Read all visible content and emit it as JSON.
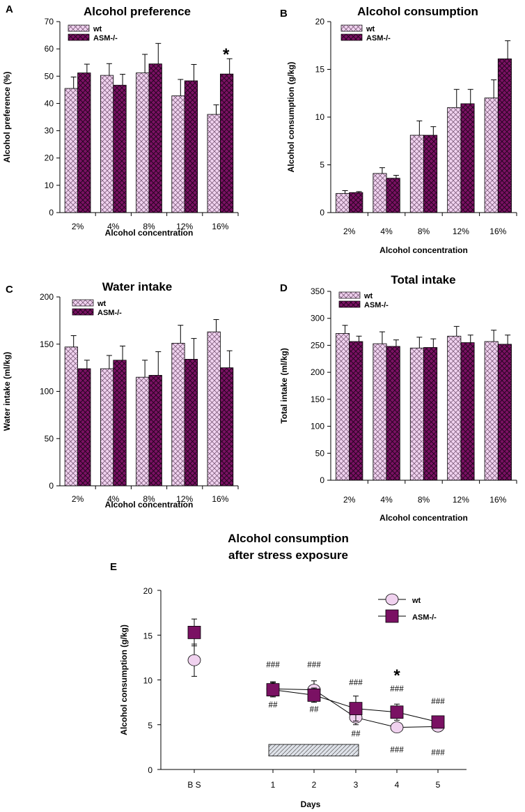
{
  "colors": {
    "wt": "#f0d2ef",
    "asm": "#7a1163",
    "hatch": "#000000"
  },
  "chart_data": [
    {
      "panel": "A",
      "type": "bar",
      "title": "Alcohol preference",
      "xlabel": "Alcohol concentration",
      "ylabel": "Alcohol preference (%)",
      "ylim": [
        0,
        70
      ],
      "ticks": [
        "0",
        "10",
        "20",
        "30",
        "40",
        "50",
        "60",
        "70"
      ],
      "categories": [
        "2%",
        "4%",
        "8%",
        "12%",
        "16%"
      ],
      "legend": [
        "wt",
        "ASM-/-"
      ],
      "series": [
        {
          "name": "wt",
          "values": [
            45.5,
            50.3,
            51.2,
            42.8,
            36
          ],
          "err": [
            4.2,
            4.3,
            6.8,
            6,
            3.5
          ]
        },
        {
          "name": "ASM-/-",
          "values": [
            51.2,
            46.7,
            54.5,
            48.3,
            50.8
          ],
          "err": [
            3.2,
            4,
            7.5,
            6,
            5.6
          ]
        }
      ],
      "annotations": [
        {
          "text": "*",
          "category": 4,
          "value": 59.5
        }
      ]
    },
    {
      "panel": "B",
      "type": "bar",
      "title": "Alcohol consumption",
      "xlabel": "Alcohol concentration",
      "ylabel": "Alcohol consumption (g/kg)",
      "ylim": [
        0,
        20
      ],
      "ticks": [
        "0",
        "5",
        "10",
        "15",
        "20"
      ],
      "categories": [
        "2%",
        "4%",
        "8%",
        "12%",
        "16%"
      ],
      "legend": [
        "wt",
        "ASM-/-"
      ],
      "series": [
        {
          "name": "wt",
          "values": [
            2,
            4.1,
            8.1,
            11,
            12
          ],
          "err": [
            0.3,
            0.6,
            1.5,
            1.9,
            1.9
          ]
        },
        {
          "name": "ASM-/-",
          "values": [
            2.1,
            3.6,
            8.1,
            11.4,
            16.1
          ],
          "err": [
            0.1,
            0.3,
            0.9,
            1.5,
            1.9
          ]
        }
      ],
      "annotations": []
    },
    {
      "panel": "C",
      "type": "bar",
      "title": "Water intake",
      "xlabel": "Alcohol concentration",
      "ylabel": "Water intake (ml/kg)",
      "ylim": [
        0,
        200
      ],
      "ticks": [
        "0",
        "50",
        "100",
        "150",
        "200"
      ],
      "categories": [
        "2%",
        "4%",
        "8%",
        "12%",
        "16%"
      ],
      "legend": [
        "wt",
        "ASM-/-"
      ],
      "series": [
        {
          "name": "wt",
          "values": [
            147,
            124,
            115,
            151,
            163
          ],
          "err": [
            12,
            14,
            18,
            19,
            13
          ]
        },
        {
          "name": "ASM-/-",
          "values": [
            124,
            133,
            117,
            134,
            125
          ],
          "err": [
            9,
            15,
            25,
            22,
            18
          ]
        }
      ],
      "annotations": []
    },
    {
      "panel": "D",
      "type": "bar",
      "title": "Total intake",
      "xlabel": "Alcohol concentration",
      "ylabel": "Total intake (ml/kg)",
      "ylim": [
        0,
        350
      ],
      "ticks": [
        "0",
        "50",
        "100",
        "150",
        "200",
        "250",
        "300",
        "350"
      ],
      "categories": [
        "2%",
        "4%",
        "8%",
        "12%",
        "16%"
      ],
      "legend": [
        "wt",
        "ASM-/-"
      ],
      "series": [
        {
          "name": "wt",
          "values": [
            272,
            253,
            245,
            267,
            257
          ],
          "err": [
            15,
            22,
            20,
            18,
            21
          ]
        },
        {
          "name": "ASM-/-",
          "values": [
            257,
            248,
            246,
            255,
            252
          ],
          "err": [
            10,
            12,
            16,
            14,
            17
          ]
        }
      ],
      "annotations": []
    },
    {
      "panel": "E",
      "type": "line",
      "title_lines": [
        "Alcohol consumption",
        "after stress exposure"
      ],
      "xlabel": "Days",
      "ylabel": "Alcohol consumption (g/kg)",
      "ylim": [
        0,
        20
      ],
      "ticks": [
        "0",
        "5",
        "10",
        "15",
        "20"
      ],
      "x_categories": [
        "B S",
        "1",
        "2",
        "3",
        "4",
        "5"
      ],
      "legend": [
        "wt",
        "ASM-/-"
      ],
      "series": [
        {
          "name": "wt",
          "values": [
            12.2,
            9,
            8.9,
            5.8,
            4.7,
            4.8
          ],
          "err": [
            1.8,
            0.8,
            1,
            0.8,
            0.4,
            0.4
          ]
        },
        {
          "name": "ASM-/-",
          "values": [
            15.3,
            8.9,
            8.3,
            6.8,
            6.4,
            5.3
          ],
          "err": [
            1.5,
            0.8,
            0.8,
            1.4,
            0.9,
            0.6
          ]
        }
      ],
      "connect_from_index": 1,
      "stress_bar": {
        "from_day": "1",
        "to_day": "3"
      },
      "annotations": [
        {
          "text": "###",
          "x": 1,
          "value": 11.8
        },
        {
          "text": "##",
          "x": 1,
          "value": 7.3
        },
        {
          "text": "###",
          "x": 2,
          "value": 11.8
        },
        {
          "text": "##",
          "x": 2,
          "value": 6.8
        },
        {
          "text": "###",
          "x": 3,
          "value": 9.8
        },
        {
          "text": "##",
          "x": 3,
          "value": 4.1
        },
        {
          "text": "*",
          "x": 4,
          "value": 10.8,
          "big": true
        },
        {
          "text": "###",
          "x": 4,
          "value": 9.1
        },
        {
          "text": "###",
          "x": 4,
          "value": 2.3
        },
        {
          "text": "###",
          "x": 5,
          "value": 7.7
        },
        {
          "text": "###",
          "x": 5,
          "value": 2.0
        }
      ]
    }
  ]
}
